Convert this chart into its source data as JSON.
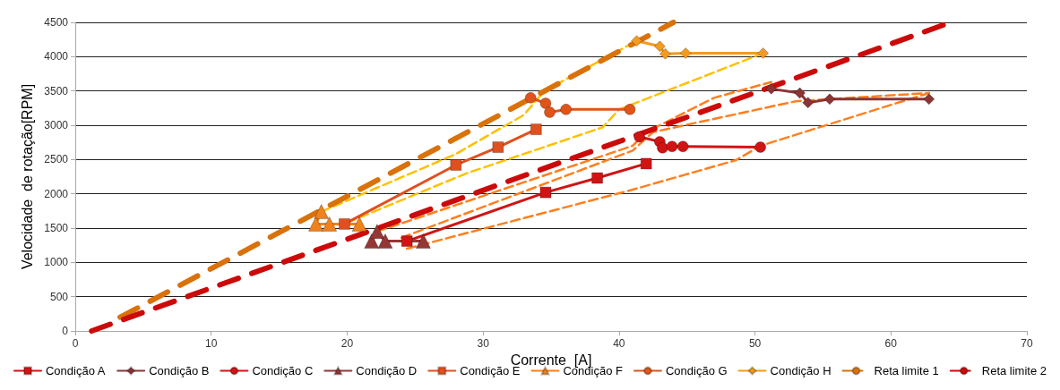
{
  "chart_data": {
    "type": "line",
    "xlabel": "Corrente  [A]",
    "ylabel": "Velocidade  de rotação[RPM]",
    "xlim": [
      0,
      70
    ],
    "xticks": [
      0,
      10,
      20,
      30,
      40,
      50,
      60,
      70
    ],
    "ylim": [
      0,
      4500
    ],
    "yticks": [
      0,
      500,
      1000,
      1500,
      2000,
      2500,
      3000,
      3500,
      4000,
      4500
    ],
    "grid": "y",
    "legend": "bottom",
    "series": [
      {
        "name": "Condição A",
        "color": "#d01414",
        "marker": "square",
        "line_style": "solid",
        "x": [
          24.4,
          34.6,
          38.4,
          42.0
        ],
        "values": [
          1310,
          2020,
          2230,
          2440
        ]
      },
      {
        "name": "Condição B",
        "color": "#8c3434",
        "marker": "diamond",
        "line_style": "solid",
        "x": [
          51.2,
          53.3,
          53.9,
          55.5,
          62.8
        ],
        "values": [
          3530,
          3470,
          3330,
          3380,
          3380
        ]
      },
      {
        "name": "Condição C",
        "color": "#d01414",
        "marker": "circle",
        "line_style": "solid",
        "x": [
          41.5,
          43.0,
          43.2,
          43.9,
          44.7,
          50.4
        ],
        "values": [
          2830,
          2760,
          2670,
          2690,
          2690,
          2680
        ]
      },
      {
        "name": "Condição D",
        "color": "#953735",
        "marker": "triangle",
        "line_style": "solid",
        "x": [
          21.8,
          22.2,
          22.8,
          25.6
        ],
        "values": [
          1310,
          1450,
          1310,
          1310
        ]
      },
      {
        "name": "Condição E",
        "color": "#e0501f",
        "marker": "square",
        "line_style": "solid",
        "x": [
          19.8,
          28.0,
          31.1,
          33.9
        ],
        "values": [
          1560,
          2420,
          2680,
          2940
        ]
      },
      {
        "name": "Condição F",
        "color": "#f0821e",
        "marker": "triangle",
        "line_style": "solid",
        "x": [
          18.1,
          17.7,
          18.7,
          20.9
        ],
        "values": [
          1740,
          1560,
          1560,
          1560
        ]
      },
      {
        "name": "Condição G",
        "color": "#e0541a",
        "marker": "circle",
        "line_style": "solid",
        "x": [
          33.5,
          34.6,
          34.9,
          36.1,
          40.8
        ],
        "values": [
          3400,
          3320,
          3190,
          3230,
          3230
        ]
      },
      {
        "name": "Condição H",
        "color": "#f39a1f",
        "marker": "diamond",
        "line_style": "solid",
        "x": [
          41.3,
          43.0,
          43.4,
          44.9,
          50.6
        ],
        "values": [
          4230,
          4150,
          4040,
          4050,
          4050
        ]
      },
      {
        "name": "Reta limite 1",
        "color": "#d9720b",
        "marker": "none",
        "line_style": "dashed",
        "x": [
          3.3,
          44.0
        ],
        "values": [
          200,
          4500
        ]
      },
      {
        "name": "Reta limite 2",
        "color": "#cc0a0a",
        "marker": "none",
        "line_style": "dashed",
        "x": [
          1.2,
          64.4
        ],
        "values": [
          0,
          4500
        ]
      },
      {
        "color": "#ffc000",
        "marker": "none",
        "line_style": "dashed",
        "x": [
          18.1,
          28.0,
          33.0,
          34.5,
          41.3
        ],
        "values": [
          1740,
          2580,
          3150,
          3500,
          4230
        ]
      },
      {
        "color": "#ffc000",
        "marker": "none",
        "line_style": "dashed",
        "x": [
          20.0,
          28.8,
          38.8,
          40.0,
          50.6
        ],
        "values": [
          1580,
          2300,
          2970,
          3230,
          4050
        ]
      },
      {
        "color": "#ff7f1e",
        "marker": "none",
        "line_style": "dashed",
        "x": [
          22.2,
          41.0,
          42.0,
          47.0,
          51.2
        ],
        "values": [
          1450,
          2700,
          2900,
          3400,
          3630
        ]
      },
      {
        "color": "#ff7f1e",
        "marker": "none",
        "line_style": "dashed",
        "x": [
          24.0,
          41.0,
          42.5,
          53.0,
          62.8
        ],
        "values": [
          1360,
          2630,
          2900,
          3350,
          3470
        ]
      },
      {
        "color": "#ff7f1e",
        "marker": "none",
        "line_style": "dashed",
        "x": [
          24.4,
          41.0,
          48.6,
          50.4,
          62.8
        ],
        "values": [
          1200,
          2060,
          2490,
          2700,
          3470
        ]
      }
    ]
  }
}
